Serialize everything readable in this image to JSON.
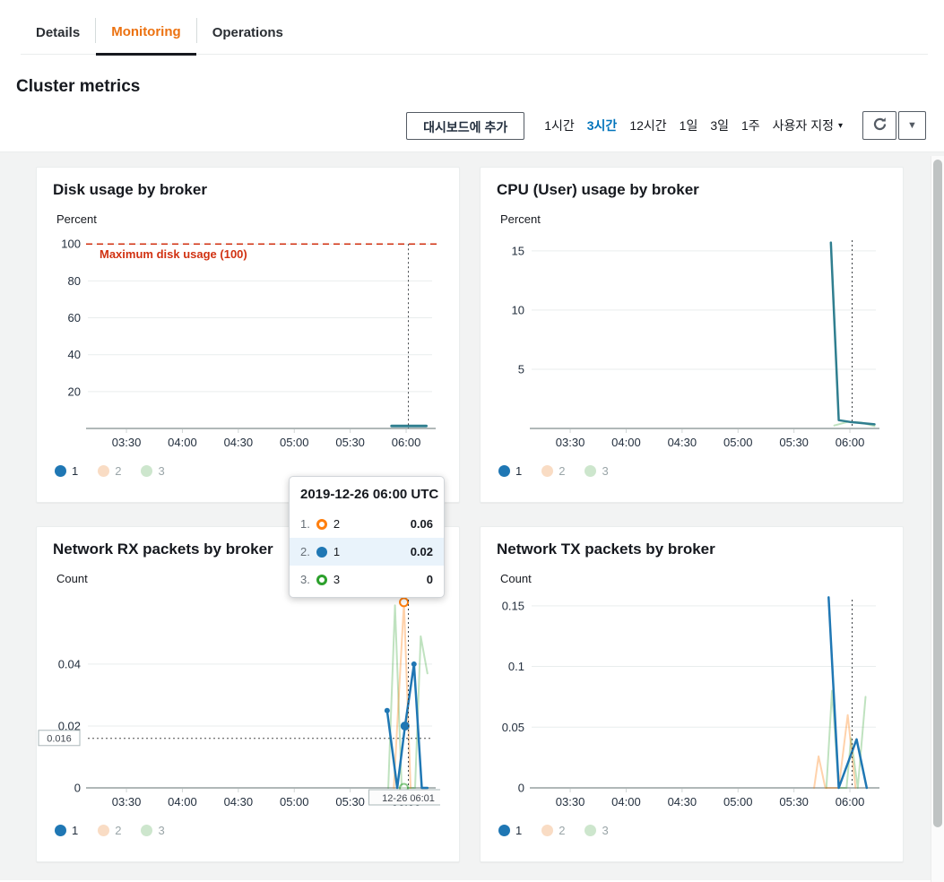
{
  "tabs": {
    "items": [
      {
        "label": "Details",
        "active": false
      },
      {
        "label": "Monitoring",
        "active": true
      },
      {
        "label": "Operations",
        "active": false
      }
    ]
  },
  "page": {
    "heading": "Cluster metrics"
  },
  "toolbar": {
    "add_button": "대시보드에 추가",
    "ranges": [
      "1시간",
      "3시간",
      "12시간",
      "1일",
      "3일",
      "1주"
    ],
    "active_range": "3시간",
    "custom_range": "사용자 지정",
    "accent_blue": "#0073bb",
    "accent_orange": "#ec7211"
  },
  "tooltip": {
    "header": "2019-12-26 06:00 UTC",
    "rows": [
      {
        "rank": "1.",
        "series": "2",
        "value": "0.06",
        "color": "#ff7f0e",
        "marker": "ring",
        "highlight": false
      },
      {
        "rank": "2.",
        "series": "1",
        "value": "0.02",
        "color": "#1f77b4",
        "marker": "filled",
        "highlight": true
      },
      {
        "rank": "3.",
        "series": "3",
        "value": "0",
        "color": "#2ca02c",
        "marker": "ring",
        "highlight": false
      }
    ]
  },
  "chart_data": "see charts",
  "charts": [
    {
      "type": "line",
      "title": "Disk usage by broker",
      "unit": "Percent",
      "x_range": [
        3.155,
        6.232
      ],
      "y_range": [
        0,
        104
      ],
      "y_ticks": [
        {
          "v": 20,
          "l": "20"
        },
        {
          "v": 40,
          "l": "40"
        },
        {
          "v": 60,
          "l": "60"
        },
        {
          "v": 80,
          "l": "80"
        },
        {
          "v": 100,
          "l": "100"
        }
      ],
      "x_ticks": [
        {
          "v": 3.5,
          "l": "03:30"
        },
        {
          "v": 4,
          "l": "04:00"
        },
        {
          "v": 4.5,
          "l": "04:30"
        },
        {
          "v": 5,
          "l": "05:00"
        },
        {
          "v": 5.5,
          "l": "05:30"
        },
        {
          "v": 6,
          "l": "06:00"
        }
      ],
      "hline": {
        "y": 100,
        "label": "Maximum disk usage (100)",
        "color": "#d13212"
      },
      "cursor": {
        "x": 6.02,
        "from_y": 100
      },
      "series": [
        {
          "name": "1",
          "color": "#2f7e8f",
          "width": 3,
          "opacity": 1,
          "points": [
            [
              5.87,
              1.3
            ],
            [
              6.18,
              1.3
            ]
          ]
        }
      ],
      "legend": [
        {
          "label": "1",
          "color": "#1f77b4",
          "dim": false
        },
        {
          "label": "2",
          "color": "#f9dcc4",
          "dim": true
        },
        {
          "label": "3",
          "color": "#cde6cd",
          "dim": true
        }
      ]
    },
    {
      "type": "line",
      "title": "CPU (User) usage by broker",
      "unit": "Percent",
      "x_range": [
        3.155,
        6.232
      ],
      "y_range": [
        0,
        16.2
      ],
      "y_ticks": [
        {
          "v": 5,
          "l": "5"
        },
        {
          "v": 10,
          "l": "10"
        },
        {
          "v": 15,
          "l": "15"
        }
      ],
      "x_ticks": [
        {
          "v": 3.5,
          "l": "03:30"
        },
        {
          "v": 4,
          "l": "04:00"
        },
        {
          "v": 4.5,
          "l": "04:30"
        },
        {
          "v": 5,
          "l": "05:00"
        },
        {
          "v": 5.5,
          "l": "05:30"
        },
        {
          "v": 6,
          "l": "06:00"
        }
      ],
      "cursor": {
        "x": 6.02
      },
      "series": [
        {
          "name": "3",
          "color": "#2ca02c",
          "width": 2,
          "opacity": 0.3,
          "points": [
            [
              5.86,
              0.25
            ],
            [
              5.98,
              0.55
            ],
            [
              6.1,
              0.5
            ],
            [
              6.22,
              0.2
            ]
          ]
        },
        {
          "name": "1",
          "color": "#2f7e8f",
          "width": 2.5,
          "opacity": 1,
          "points": [
            [
              5.83,
              15.7
            ],
            [
              5.9,
              0.7
            ],
            [
              6.0,
              0.55
            ],
            [
              6.22,
              0.35
            ]
          ]
        }
      ],
      "legend": [
        {
          "label": "1",
          "color": "#1f77b4",
          "dim": false
        },
        {
          "label": "2",
          "color": "#f9dcc4",
          "dim": true
        },
        {
          "label": "3",
          "color": "#cde6cd",
          "dim": true
        }
      ]
    },
    {
      "type": "line",
      "title": "Network RX packets by broker",
      "unit": "Count",
      "x_range": [
        3.155,
        6.232
      ],
      "y_range": [
        0,
        0.062
      ],
      "y_ticks": [
        {
          "v": 0,
          "l": "0"
        },
        {
          "v": 0.02,
          "l": "0.02"
        },
        {
          "v": 0.04,
          "l": "0.04"
        }
      ],
      "x_ticks": [
        {
          "v": 3.5,
          "l": "03:30"
        },
        {
          "v": 4,
          "l": "04:00"
        },
        {
          "v": 4.5,
          "l": "04:30"
        },
        {
          "v": 5,
          "l": "05:00"
        },
        {
          "v": 5.5,
          "l": "05:30"
        },
        {
          "v": 6,
          "l": "06:00"
        }
      ],
      "threshold": {
        "y": 0.016,
        "label": "0.016"
      },
      "cursor": {
        "x": 6.02,
        "label": "12-26 06:01"
      },
      "series": [
        {
          "name": "3",
          "color": "#2ca02c",
          "width": 2,
          "opacity": 0.3,
          "mop": 0.55,
          "points": [
            [
              5.84,
              0
            ],
            [
              5.9,
              0.059
            ],
            [
              5.96,
              0
            ],
            [
              6.08,
              0
            ],
            [
              6.13,
              0.049
            ],
            [
              6.19,
              0.037
            ]
          ],
          "markers": [
            {
              "x": 5.98,
              "y": 0,
              "t": "ring"
            }
          ]
        },
        {
          "name": "2",
          "color": "#ff7f0e",
          "width": 2,
          "opacity": 0.35,
          "mop": 1,
          "points": [
            [
              5.89,
              0
            ],
            [
              5.98,
              0.06
            ],
            [
              6.04,
              0
            ]
          ],
          "markers": [
            {
              "x": 5.98,
              "y": 0.06,
              "t": "ring"
            }
          ]
        },
        {
          "name": "1",
          "color": "#1f77b4",
          "width": 2.5,
          "opacity": 1,
          "points": [
            [
              5.83,
              0.025
            ],
            [
              5.92,
              0
            ],
            [
              5.99,
              0.02
            ],
            [
              6.07,
              0.04
            ],
            [
              6.14,
              0
            ],
            [
              6.19,
              0
            ]
          ],
          "markers": [
            {
              "x": 5.83,
              "y": 0.025,
              "t": "dot"
            },
            {
              "x": 6.07,
              "y": 0.04,
              "t": "dot"
            },
            {
              "x": 5.99,
              "y": 0.02,
              "t": "big"
            }
          ]
        }
      ],
      "legend": [
        {
          "label": "1",
          "color": "#1f77b4",
          "dim": false
        },
        {
          "label": "2",
          "color": "#f9dcc4",
          "dim": true
        },
        {
          "label": "3",
          "color": "#cde6cd",
          "dim": true
        }
      ]
    },
    {
      "type": "line",
      "title": "Network TX packets by broker",
      "unit": "Count",
      "x_range": [
        3.155,
        6.232
      ],
      "y_range": [
        0,
        0.158
      ],
      "y_ticks": [
        {
          "v": 0,
          "l": "0"
        },
        {
          "v": 0.05,
          "l": "0.05"
        },
        {
          "v": 0.1,
          "l": "0.1"
        },
        {
          "v": 0.15,
          "l": "0.15"
        }
      ],
      "x_ticks": [
        {
          "v": 3.5,
          "l": "03:30"
        },
        {
          "v": 4,
          "l": "04:00"
        },
        {
          "v": 4.5,
          "l": "04:30"
        },
        {
          "v": 5,
          "l": "05:00"
        },
        {
          "v": 5.5,
          "l": "05:30"
        },
        {
          "v": 6,
          "l": "06:00"
        }
      ],
      "cursor": {
        "x": 6.02
      },
      "series": [
        {
          "name": "3",
          "color": "#2ca02c",
          "width": 2,
          "opacity": 0.3,
          "points": [
            [
              5.79,
              0
            ],
            [
              5.84,
              0.08
            ],
            [
              5.9,
              0
            ],
            [
              5.97,
              0
            ],
            [
              6.01,
              0.041
            ],
            [
              6.07,
              0
            ],
            [
              6.14,
              0.075
            ]
          ]
        },
        {
          "name": "2",
          "color": "#ff7f0e",
          "width": 2,
          "opacity": 0.35,
          "points": [
            [
              5.68,
              0
            ],
            [
              5.72,
              0.026
            ],
            [
              5.78,
              0
            ],
            [
              5.9,
              0
            ],
            [
              5.98,
              0.06
            ],
            [
              6.05,
              0
            ]
          ]
        },
        {
          "name": "1",
          "color": "#1f77b4",
          "width": 2.5,
          "opacity": 1,
          "points": [
            [
              5.81,
              0.157
            ],
            [
              5.9,
              0
            ],
            [
              6.06,
              0.04
            ],
            [
              6.15,
              0
            ]
          ]
        }
      ],
      "legend": [
        {
          "label": "1",
          "color": "#1f77b4",
          "dim": false
        },
        {
          "label": "2",
          "color": "#f9dcc4",
          "dim": true
        },
        {
          "label": "3",
          "color": "#cde6cd",
          "dim": true
        }
      ]
    }
  ]
}
